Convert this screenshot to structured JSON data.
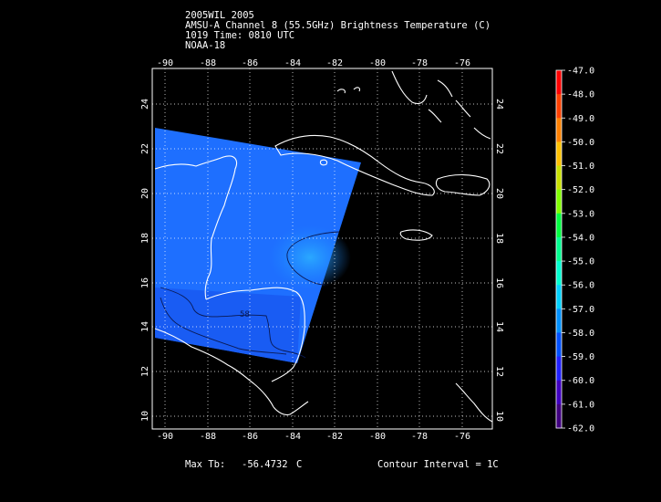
{
  "header": {
    "line1": "2005WIL 2005",
    "line2": "AMSU-A Channel 8 (55.5GHz) Brightness Temperature (C)",
    "line3": "1019 Time: 0810 UTC",
    "line4": "NOAA-18"
  },
  "map": {
    "lon_ticks": [
      "-90",
      "-88",
      "-86",
      "-84",
      "-82",
      "-80",
      "-78",
      "-76"
    ],
    "lat_ticks": [
      "24",
      "22",
      "20",
      "18",
      "16",
      "14",
      "12",
      "10"
    ],
    "lon_range": [
      -90.5,
      -74.5
    ],
    "lat_range": [
      9.5,
      25.5
    ],
    "contour_label": "58",
    "swath_color": "#1e6fff",
    "warm_core_color": "#2aa8ff"
  },
  "colorbar": {
    "labels": [
      "-47.0",
      "-48.0",
      "-49.0",
      "-50.0",
      "-51.0",
      "-52.0",
      "-53.0",
      "-54.0",
      "-55.0",
      "-56.0",
      "-57.0",
      "-58.0",
      "-59.0",
      "-60.0",
      "-61.0",
      "-62.0"
    ],
    "colors": [
      "#ff0000",
      "#ff4000",
      "#ff8000",
      "#ffc000",
      "#c8e000",
      "#80ff00",
      "#00ff40",
      "#00ff90",
      "#00ffd0",
      "#00d0ff",
      "#0090ff",
      "#0050ff",
      "#2020ff",
      "#4000c0",
      "#400080",
      "#000000"
    ]
  },
  "footer": {
    "max_tb_label": "Max Tb:",
    "max_tb_value": "-56.4732",
    "max_tb_unit": "C",
    "contour_interval": "Contour Interval = 1C"
  }
}
